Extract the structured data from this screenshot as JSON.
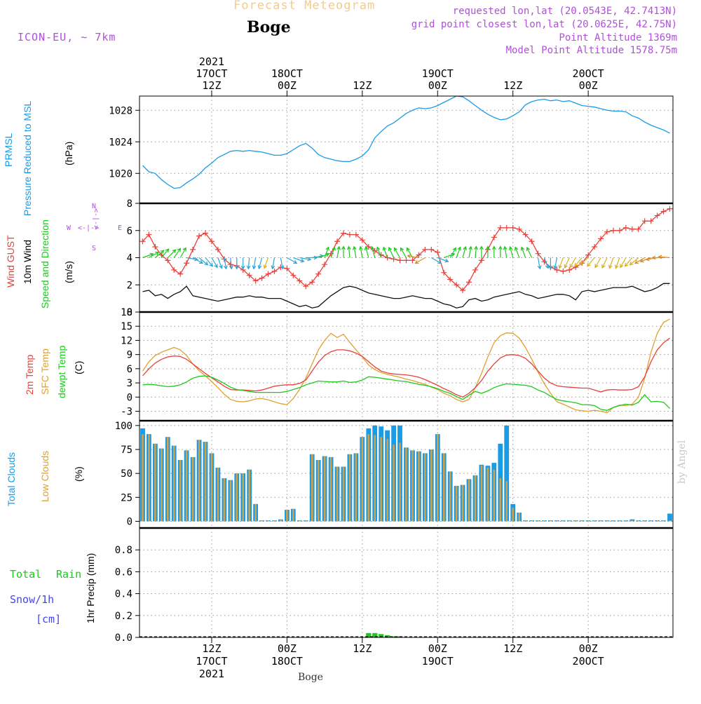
{
  "header": {
    "title": "Forecast Meteogram",
    "location": "Boge",
    "model": "ICON-EU, ~ 7km",
    "requested": "requested lon,lat (20.0543E, 42.7413N)",
    "grid": "grid point closest lon,lat (20.0625E, 42.75N)",
    "altitude": "Point Altitude 1369m",
    "model_altitude": "Model Point Altitude 1578.75m",
    "footer": "Boge",
    "credit": "by Angel"
  },
  "time_axis": {
    "top_labels": [
      {
        "t": 12,
        "lines": [
          "2021",
          "17OCT",
          "12Z"
        ]
      },
      {
        "t": 24,
        "lines": [
          "18OCT",
          "00Z"
        ]
      },
      {
        "t": 36,
        "lines": [
          "12Z"
        ]
      },
      {
        "t": 48,
        "lines": [
          "19OCT",
          "00Z"
        ]
      },
      {
        "t": 60,
        "lines": [
          "12Z"
        ]
      },
      {
        "t": 72,
        "lines": [
          "20OCT",
          "00Z"
        ]
      }
    ],
    "bottom_labels": [
      {
        "t": 12,
        "lines": [
          "12Z",
          "17OCT",
          "2021"
        ]
      },
      {
        "t": 24,
        "lines": [
          "00Z",
          "18OCT"
        ]
      },
      {
        "t": 36,
        "lines": [
          "12Z"
        ]
      },
      {
        "t": 48,
        "lines": [
          "00Z",
          "19OCT"
        ]
      },
      {
        "t": 60,
        "lines": [
          "12Z"
        ]
      },
      {
        "t": 72,
        "lines": [
          "00Z",
          "20OCT"
        ]
      }
    ]
  },
  "panel_labels": {
    "pressure": [
      "PRMSL",
      "Pressure Reduced to MSL",
      "(hPa)"
    ],
    "wind": [
      "Wind GUST",
      "10m Wind",
      "Speed and Direction",
      "(m/s)"
    ],
    "compass": {
      "n": "N",
      "s": "S",
      "w": "W",
      "e": "E",
      "arrows": "<-|->"
    },
    "temp": [
      "2m Temp",
      "SFC Temp",
      "dewpt Temp",
      "(C)"
    ],
    "clouds": [
      "Total Clouds",
      "Low Clouds",
      "(%)"
    ],
    "precip": [
      "Total",
      "Rain",
      "Snow/1h",
      "[cm]",
      "1hr Precip (mm)"
    ]
  },
  "colors": {
    "pressure": "#1a9be6",
    "gust": "#e8403a",
    "wind": "#111111",
    "temp2m": "#e8403a",
    "sfc": "#e0a030",
    "dew": "#1ec81e",
    "total_cloud": "#1a9be6",
    "low_cloud": "#d9a040",
    "rain": "#1ec81e",
    "snow": "#4646e6",
    "title": "#f2cc8c",
    "info": "#b050d8"
  },
  "chart_data": [
    {
      "type": "line",
      "title": "PRMSL Pressure Reduced to MSL",
      "ylabel": "(hPa)",
      "ylim": [
        1016.2,
        1029.8
      ],
      "yticks": [
        1020,
        1024,
        1028
      ],
      "x_start_hour": 1,
      "x_step_hour": 1,
      "series": [
        {
          "name": "PRMSL",
          "color": "#1a9be6",
          "values": [
            1021,
            1020.2,
            1020,
            1019.2,
            1018.6,
            1018.1,
            1018.2,
            1018.8,
            1019.3,
            1019.9,
            1020.7,
            1021.3,
            1022,
            1022.4,
            1022.8,
            1022.9,
            1022.8,
            1022.9,
            1022.8,
            1022.7,
            1022.5,
            1022.3,
            1022.3,
            1022.5,
            1023,
            1023.5,
            1023.8,
            1023.2,
            1022.4,
            1022,
            1021.8,
            1021.6,
            1021.5,
            1021.5,
            1021.8,
            1022.2,
            1023,
            1024.5,
            1025.3,
            1026,
            1026.4,
            1027,
            1027.6,
            1028,
            1028.3,
            1028.2,
            1028.3,
            1028.6,
            1029,
            1029.4,
            1029.8,
            1029.7,
            1029.2,
            1028.6,
            1028,
            1027.5,
            1027.1,
            1026.8,
            1026.9,
            1027.3,
            1027.8,
            1028.7,
            1029.1,
            1029.3,
            1029.4,
            1029.2,
            1029.3,
            1029.1,
            1029.2,
            1028.9,
            1028.6,
            1028.5,
            1028.4,
            1028.2,
            1028,
            1027.9,
            1027.9,
            1027.8,
            1027.3,
            1027,
            1026.5,
            1026.1,
            1025.8,
            1025.5,
            1025.1
          ]
        }
      ]
    },
    {
      "type": "line",
      "title": "Wind GUST / 10m Wind Speed and Direction",
      "ylabel": "(m/s)",
      "ylim": [
        0,
        8
      ],
      "yticks": [
        0,
        2,
        4,
        6,
        8
      ],
      "x_start_hour": 1,
      "x_step_hour": 1,
      "series": [
        {
          "name": "Wind GUST",
          "color": "#e8403a",
          "marker": "+",
          "values": [
            5.2,
            5.7,
            4.8,
            4.2,
            3.8,
            3.1,
            2.8,
            3.6,
            4.6,
            5.6,
            5.8,
            5.2,
            4.6,
            3.9,
            3.5,
            3.4,
            3.1,
            2.7,
            2.3,
            2.5,
            2.8,
            3.0,
            3.3,
            3.2,
            2.7,
            2.3,
            1.9,
            2.2,
            2.8,
            3.5,
            4.3,
            5.2,
            5.8,
            5.7,
            5.7,
            5.3,
            4.8,
            4.5,
            4.2,
            4.0,
            3.9,
            3.8,
            3.8,
            3.8,
            4.2,
            4.6,
            4.6,
            4.4,
            2.9,
            2.4,
            2.0,
            1.6,
            2.2,
            3.1,
            3.8,
            4.6,
            5.5,
            6.2,
            6.2,
            6.2,
            6.1,
            5.7,
            5.2,
            4.3,
            3.7,
            3.3,
            3.1,
            3.0,
            3.1,
            3.3,
            3.6,
            4.2,
            4.8,
            5.4,
            5.9,
            6.0,
            6.0,
            6.2,
            6.1,
            6.1,
            6.7,
            6.7,
            7.1,
            7.4,
            7.6
          ]
        },
        {
          "name": "10m Wind",
          "color": "#111111",
          "values": [
            1.5,
            1.6,
            1.2,
            1.3,
            1.0,
            1.3,
            1.5,
            1.9,
            1.2,
            1.1,
            1.0,
            0.9,
            0.8,
            0.9,
            1.0,
            1.1,
            1.1,
            1.2,
            1.1,
            1.1,
            1.0,
            1.0,
            1.0,
            0.8,
            0.6,
            0.4,
            0.5,
            0.3,
            0.4,
            0.8,
            1.2,
            1.5,
            1.8,
            1.9,
            1.8,
            1.6,
            1.4,
            1.3,
            1.2,
            1.1,
            1.0,
            1.0,
            1.1,
            1.2,
            1.1,
            1.0,
            1.0,
            0.8,
            0.6,
            0.5,
            0.3,
            0.4,
            0.9,
            1.0,
            0.8,
            0.9,
            1.1,
            1.2,
            1.3,
            1.4,
            1.5,
            1.3,
            1.2,
            1.0,
            1.1,
            1.2,
            1.3,
            1.3,
            1.2,
            0.9,
            1.5,
            1.6,
            1.5,
            1.6,
            1.7,
            1.8,
            1.8,
            1.8,
            1.9,
            1.7,
            1.5,
            1.6,
            1.8,
            2.1,
            2.1
          ]
        },
        {
          "name": "Wind direction arrows (color-coded)",
          "values_deg": [
            250,
            240,
            230,
            220,
            225,
            215,
            210,
            280,
            300,
            310,
            320,
            330,
            340,
            350,
            355,
            0,
            0,
            5,
            10,
            15,
            20,
            10,
            350,
            300,
            290,
            280,
            270,
            260,
            250,
            200,
            200,
            190,
            180,
            175,
            170,
            170,
            165,
            165,
            160,
            160,
            155,
            150,
            150,
            150,
            100,
            60,
            300,
            290,
            250,
            210,
            200,
            195,
            190,
            185,
            180,
            180,
            180,
            180,
            170,
            165,
            160,
            160,
            155,
            350,
            340,
            0,
            10,
            20,
            25,
            30,
            40,
            50,
            40,
            30,
            25,
            20,
            20,
            30,
            40,
            50,
            60,
            70,
            80,
            90,
            95
          ]
        }
      ]
    },
    {
      "type": "line",
      "title": "2m Temp / SFC Temp / dewpt Temp",
      "ylabel": "(C)",
      "ylim": [
        -5,
        18
      ],
      "yticks": [
        -3,
        0,
        3,
        6,
        9,
        12,
        15,
        18
      ],
      "x_start_hour": 1,
      "x_step_hour": 1,
      "series": [
        {
          "name": "2m Temp",
          "color": "#e8403a",
          "values": [
            4.5,
            6.0,
            7.2,
            8.0,
            8.5,
            8.7,
            8.6,
            8.0,
            7.0,
            6.0,
            5.0,
            4.1,
            3.2,
            2.3,
            1.6,
            1.5,
            1.5,
            1.4,
            1.3,
            1.5,
            1.9,
            2.3,
            2.5,
            2.6,
            2.6,
            2.9,
            3.6,
            5.5,
            7.4,
            8.8,
            9.6,
            10.0,
            10.0,
            9.8,
            9.3,
            8.6,
            7.5,
            6.4,
            5.5,
            5.1,
            4.9,
            4.8,
            4.7,
            4.5,
            4.2,
            3.7,
            3.1,
            2.5,
            1.8,
            1.2,
            0.5,
            0.0,
            0.8,
            2.0,
            3.5,
            5.5,
            7.0,
            8.3,
            8.9,
            9.0,
            8.8,
            8.2,
            7.0,
            5.5,
            4.0,
            3.0,
            2.4,
            2.2,
            2.1,
            2.0,
            1.9,
            1.9,
            1.5,
            1.1,
            1.5,
            1.6,
            1.5,
            1.5,
            1.6,
            2.2,
            4.3,
            7.5,
            10.0,
            11.5,
            12.5
          ]
        },
        {
          "name": "SFC Temp",
          "color": "#e0a030",
          "values": [
            5.5,
            7.5,
            8.8,
            9.5,
            10.0,
            10.5,
            10.0,
            8.8,
            7.0,
            5.6,
            4.5,
            3.3,
            2.0,
            0.6,
            -0.5,
            -0.9,
            -1.0,
            -0.8,
            -0.4,
            -0.3,
            -0.6,
            -1.0,
            -1.4,
            -1.6,
            -0.3,
            1.6,
            4.0,
            7.0,
            10.0,
            12.0,
            13.5,
            12.6,
            13.3,
            11.6,
            10.0,
            8.5,
            6.8,
            5.8,
            5.2,
            4.8,
            4.5,
            4.2,
            3.8,
            3.5,
            3.1,
            2.7,
            2.1,
            1.6,
            0.8,
            0.3,
            -0.5,
            -1.0,
            -0.5,
            2.0,
            5.0,
            8.5,
            11.5,
            13.0,
            13.6,
            13.5,
            12.5,
            10.5,
            8.0,
            5.3,
            2.8,
            0.8,
            -1.0,
            -1.5,
            -2.1,
            -2.7,
            -2.9,
            -3.0,
            -2.8,
            -3.0,
            -3.3,
            -2.2,
            -1.7,
            -1.8,
            -1.5,
            0.0,
            4.0,
            9.5,
            13.5,
            15.8,
            16.5
          ]
        },
        {
          "name": "dewpt Temp",
          "color": "#1ec81e",
          "values": [
            2.6,
            2.7,
            2.6,
            2.4,
            2.2,
            2.3,
            2.6,
            3.2,
            4.0,
            4.4,
            4.5,
            4.2,
            3.6,
            2.9,
            2.1,
            1.6,
            1.4,
            1.2,
            1.0,
            1.0,
            1.0,
            1.0,
            1.0,
            1.2,
            1.6,
            2.0,
            2.6,
            3.0,
            3.4,
            3.3,
            3.2,
            3.2,
            3.4,
            3.1,
            3.2,
            3.6,
            4.3,
            4.2,
            4.0,
            3.8,
            3.6,
            3.4,
            3.3,
            3.0,
            2.7,
            2.5,
            2.2,
            1.8,
            1.2,
            0.8,
            0.1,
            -0.5,
            0.4,
            1.2,
            0.8,
            1.3,
            2.0,
            2.5,
            2.8,
            2.7,
            2.6,
            2.5,
            2.2,
            1.5,
            1.0,
            0.2,
            -0.5,
            -0.8,
            -1.0,
            -1.2,
            -1.6,
            -1.6,
            -1.8,
            -2.6,
            -2.8,
            -2.2,
            -1.8,
            -1.5,
            -1.7,
            -1.1,
            0.5,
            -1.0,
            -0.9,
            -1.1,
            -2.4
          ]
        }
      ]
    },
    {
      "type": "bar",
      "title": "Total Clouds / Low Clouds",
      "ylabel": "(%)",
      "ylim": [
        -7,
        105
      ],
      "yticks": [
        0,
        25,
        50,
        75,
        100
      ],
      "x_start_hour": 1,
      "x_step_hour": 1,
      "series": [
        {
          "name": "Total Clouds",
          "color": "#1a9be6",
          "values": [
            97,
            91,
            81,
            76,
            88,
            79,
            64,
            74,
            67,
            85,
            83,
            71,
            56,
            45,
            43,
            50,
            50,
            54,
            18,
            1,
            1,
            1,
            2,
            12,
            13,
            1,
            1,
            70,
            64,
            68,
            67,
            57,
            57,
            70,
            71,
            88,
            97,
            100,
            99,
            95,
            100,
            100,
            77,
            74,
            73,
            71,
            75,
            91,
            71,
            52,
            37,
            38,
            44,
            48,
            59,
            58,
            61,
            81,
            100,
            18,
            9,
            1,
            1,
            1,
            1,
            1,
            1,
            1,
            1,
            1,
            1,
            1,
            1,
            1,
            1,
            1,
            1,
            1,
            2,
            1,
            1,
            1,
            1,
            1,
            8
          ]
        },
        {
          "name": "Low Clouds",
          "color": "#d9a040",
          "values": [
            91,
            91,
            81,
            76,
            88,
            79,
            64,
            74,
            67,
            85,
            83,
            71,
            56,
            45,
            43,
            50,
            50,
            54,
            18,
            1,
            1,
            1,
            2,
            12,
            13,
            1,
            1,
            70,
            64,
            68,
            67,
            57,
            57,
            70,
            71,
            88,
            91,
            90,
            88,
            86,
            80,
            82,
            77,
            74,
            73,
            71,
            75,
            91,
            71,
            52,
            37,
            38,
            44,
            48,
            58,
            56,
            54,
            45,
            42,
            14,
            9,
            1,
            1,
            1,
            1,
            1,
            1,
            1,
            1,
            1,
            1,
            1,
            1,
            1,
            1,
            1,
            1,
            1,
            1,
            1,
            1,
            1,
            1,
            1,
            1
          ]
        }
      ]
    },
    {
      "type": "bar",
      "title": "1hr Precip (mm)",
      "ylabel": "1hr Precip (mm)",
      "ylim": [
        0,
        1.0
      ],
      "yticks": [
        0,
        0.2,
        0.4,
        0.6,
        0.8
      ],
      "series": [
        {
          "name": "Total Rain",
          "color": "#1ec81e",
          "x": [
            37,
            38,
            39,
            40,
            41,
            42
          ],
          "values": [
            0.04,
            0.04,
            0.03,
            0.02,
            0.01,
            0.01
          ]
        },
        {
          "name": "Snow/1h",
          "color": "#4646e6",
          "x": [],
          "values": []
        }
      ]
    }
  ]
}
